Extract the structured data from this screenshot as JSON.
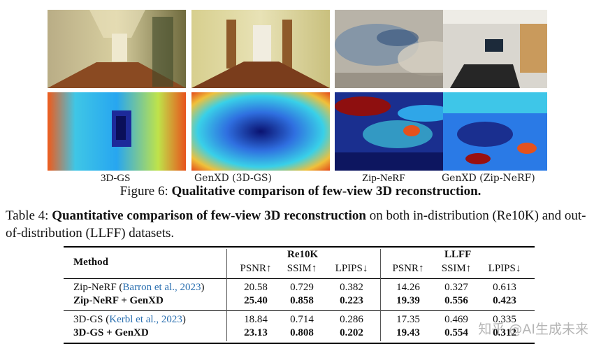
{
  "figure": {
    "panel_labels": [
      "3D-GS",
      "GenXD (3D-GS)",
      "Zip-NeRF",
      "GenXD (Zip-NeRF)"
    ],
    "caption_prefix": "Figure 6:",
    "caption_bold": "Qualitative comparison of few-view 3D reconstruction."
  },
  "table_caption": {
    "prefix": "Table 4:",
    "bold": "Quantitative comparison of few-view 3D reconstruction",
    "rest": "on both in-distribution (Re10K) and out-of-distribution (LLFF) datasets."
  },
  "table": {
    "method_header": "Method",
    "group_headers": [
      "Re10K",
      "LLFF"
    ],
    "metric_headers": [
      "PSNR↑",
      "SSIM↑",
      "LPIPS↓",
      "PSNR↑",
      "SSIM↑",
      "LPIPS↓"
    ],
    "rows": [
      {
        "method": "Zip-NeRF",
        "cite": "Barron et al., 2023",
        "values": [
          "20.58",
          "0.729",
          "0.382",
          "14.26",
          "0.327",
          "0.613"
        ],
        "bold": false
      },
      {
        "method": "Zip-NeRF + GenXD",
        "cite": "",
        "values": [
          "25.40",
          "0.858",
          "0.223",
          "19.39",
          "0.556",
          "0.423"
        ],
        "bold": true
      },
      {
        "method": "3D-GS",
        "cite": "Kerbl et al., 2023",
        "values": [
          "18.84",
          "0.714",
          "0.286",
          "17.35",
          "0.469",
          "0.335"
        ],
        "bold": false
      },
      {
        "method": "3D-GS + GenXD",
        "cite": "",
        "values": [
          "23.13",
          "0.808",
          "0.202",
          "19.43",
          "0.554",
          "0.312"
        ],
        "bold": true
      }
    ]
  },
  "watermark": "知乎 @AI生成未来"
}
